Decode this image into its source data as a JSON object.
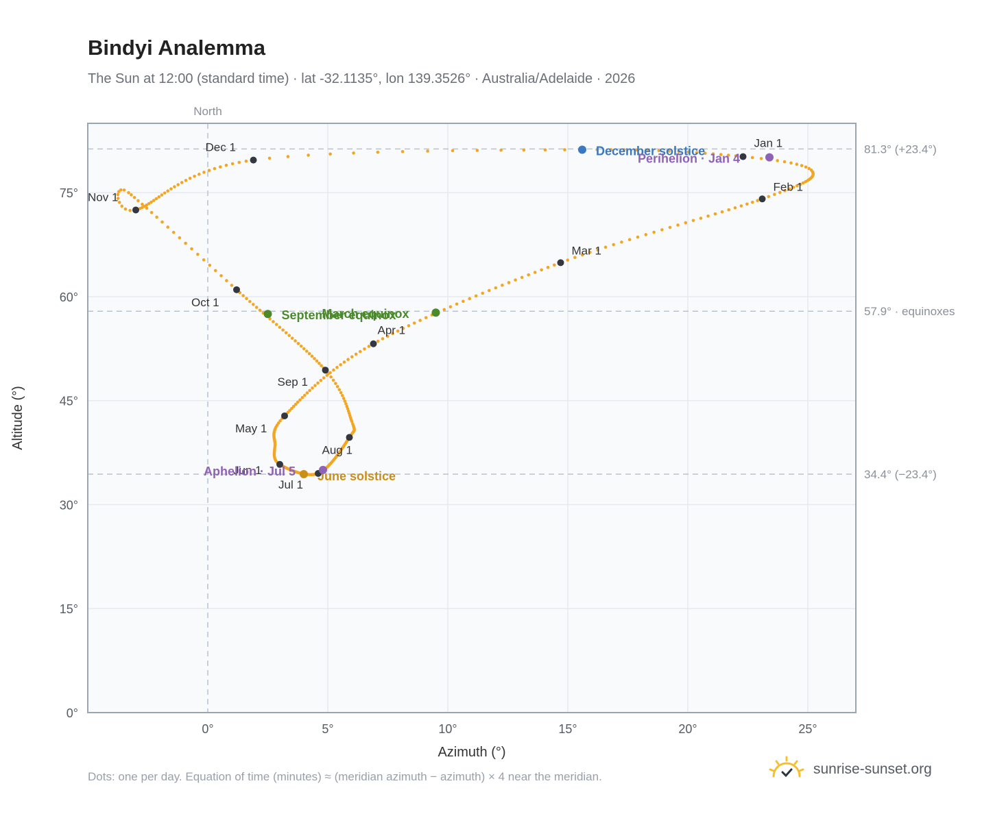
{
  "title": "Bindyi Analemma",
  "subtitle": "The Sun at 12:00 (standard time) · lat -32.1135°, lon 139.3526° · Australia/Adelaide · 2026",
  "footer_note": "Dots: one per day. Equation of time (minutes) ≈ (meridian azimuth − azimuth) × 4 near the meridian.",
  "brand": {
    "text": "sunrise-sunset.org",
    "icon": "sun-logo-icon"
  },
  "colors": {
    "path": "#f2a623",
    "month_marker": "#333840",
    "december_solstice": "#3a78c2",
    "june_solstice": "#c8901a",
    "equinox": "#4a8a2a",
    "perihelion_aphelion": "#8e63b5",
    "grid": "#e6eaef",
    "frame": "#9aa5b3",
    "plot_bg": "#f8fafc"
  },
  "chart_data": {
    "type": "scatter",
    "xlabel": "Azimuth (°)",
    "ylabel": "Altitude (°)",
    "xlim": [
      -5,
      27
    ],
    "ylim": [
      0,
      85
    ],
    "x_ticks": [
      0,
      5,
      10,
      15,
      20,
      25
    ],
    "y_ticks": [
      0,
      15,
      30,
      45,
      60,
      75
    ],
    "x_tick_labels": [
      "0°",
      "5°",
      "10°",
      "15°",
      "20°",
      "25°"
    ],
    "y_tick_labels": [
      "0°",
      "15°",
      "30°",
      "45°",
      "60°",
      "75°"
    ],
    "grid": true,
    "meridian": {
      "x": 0,
      "label": "North"
    },
    "reference_lines": [
      {
        "y": 81.3,
        "label": "81.3° (+23.4°)"
      },
      {
        "y": 57.9,
        "label": "57.9° · equinoxes"
      },
      {
        "y": 34.4,
        "label": "34.4° (−23.4°)"
      }
    ],
    "months": [
      {
        "label": "Jan 1",
        "az": 22.3,
        "alt": 80.2
      },
      {
        "label": "Feb 1",
        "az": 23.1,
        "alt": 74.1
      },
      {
        "label": "Mar 1",
        "az": 14.7,
        "alt": 64.9
      },
      {
        "label": "Apr 1",
        "az": 6.9,
        "alt": 53.2
      },
      {
        "label": "May 1",
        "az": 3.2,
        "alt": 42.8
      },
      {
        "label": "Jun 1",
        "az": 3.0,
        "alt": 35.8
      },
      {
        "label": "Jul 1",
        "az": 4.6,
        "alt": 34.5
      },
      {
        "label": "Aug 1",
        "az": 5.9,
        "alt": 39.7
      },
      {
        "label": "Sep 1",
        "az": 4.9,
        "alt": 49.4
      },
      {
        "label": "Oct 1",
        "az": 1.2,
        "alt": 61.0
      },
      {
        "label": "Nov 1",
        "az": -3.0,
        "alt": 72.5
      },
      {
        "label": "Dec 1",
        "az": 1.9,
        "alt": 79.7
      }
    ],
    "events": [
      {
        "label": "December solstice",
        "az": 15.6,
        "alt": 81.2,
        "color_key": "december_solstice"
      },
      {
        "label": "Perihelion · Jan 4",
        "az": 23.4,
        "alt": 80.1,
        "color_key": "perihelion_aphelion"
      },
      {
        "label": "March equinox",
        "az": 9.5,
        "alt": 57.7,
        "color_key": "equinox"
      },
      {
        "label": "September equinox",
        "az": 2.5,
        "alt": 57.5,
        "color_key": "equinox"
      },
      {
        "label": "June solstice",
        "az": 4.0,
        "alt": 34.4,
        "color_key": "june_solstice"
      },
      {
        "label": "Aphelion · Jul 5",
        "az": 4.8,
        "alt": 35.0,
        "color_key": "perihelion_aphelion"
      }
    ]
  }
}
